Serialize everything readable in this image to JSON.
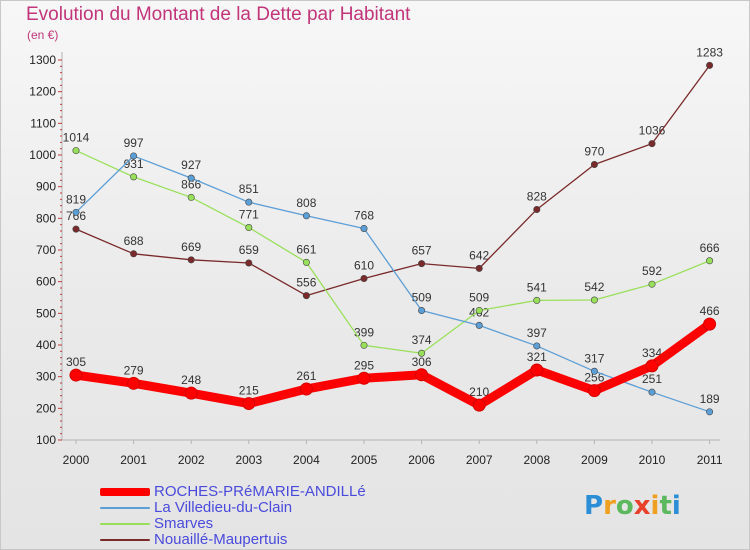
{
  "title": "Evolution du Montant de la Dette par Habitant",
  "unit": "(en €)",
  "chart_data": {
    "type": "line",
    "x": [
      "2000",
      "2001",
      "2002",
      "2003",
      "2004",
      "2005",
      "2006",
      "2007",
      "2008",
      "2009",
      "2010",
      "2011"
    ],
    "y_ticks": [
      100,
      200,
      300,
      400,
      500,
      600,
      700,
      800,
      900,
      1000,
      1100,
      1200,
      1300
    ],
    "ylim": [
      100,
      1300
    ],
    "grid": false,
    "legend_position": "bottom-left",
    "series": [
      {
        "name": "ROCHES-PRéMARIE-ANDILLé",
        "color": "#ff0000",
        "values": [
          305,
          279,
          248,
          215,
          261,
          295,
          306,
          210,
          321,
          256,
          334,
          466
        ],
        "labels": [
          "305",
          "279",
          "248",
          "215",
          "261",
          "295",
          "306",
          "210",
          "321",
          "256",
          "334",
          "466"
        ]
      },
      {
        "name": "La Villedieu-du-Clain",
        "color": "#5c9ed6",
        "values": [
          819,
          997,
          927,
          851,
          808,
          768,
          509,
          462,
          397,
          317,
          251,
          189
        ],
        "labels": [
          "819",
          "997",
          "927",
          "851",
          "808",
          "768",
          "509",
          "462",
          "397",
          "317",
          "251",
          "189"
        ]
      },
      {
        "name": "Smarves",
        "color": "#99e05a",
        "values": [
          1014,
          931,
          866,
          771,
          661,
          399,
          374,
          509,
          541,
          542,
          592,
          666
        ],
        "labels": [
          "1014",
          "931",
          "866",
          "771",
          "661",
          "399",
          "374",
          "509",
          "541",
          "542",
          "592",
          "666"
        ]
      },
      {
        "name": "Nouaillé-Maupertuis",
        "color": "#7a2a2a",
        "values": [
          766,
          688,
          669,
          659,
          556,
          610,
          657,
          642,
          828,
          970,
          1036,
          1283
        ],
        "labels": [
          "766",
          "688",
          "669",
          "659",
          "556",
          "610",
          "657",
          "642",
          "828",
          "970",
          "1036",
          "1283"
        ]
      }
    ]
  },
  "logo": {
    "letters": [
      "P",
      "r",
      "o",
      "x",
      "i",
      "t",
      "i"
    ],
    "colors": [
      "#2b8ed6",
      "#f0a020",
      "#5cb85c",
      "#e8402a",
      "#f0a020",
      "#5cb85c",
      "#2b8ed6"
    ]
  }
}
